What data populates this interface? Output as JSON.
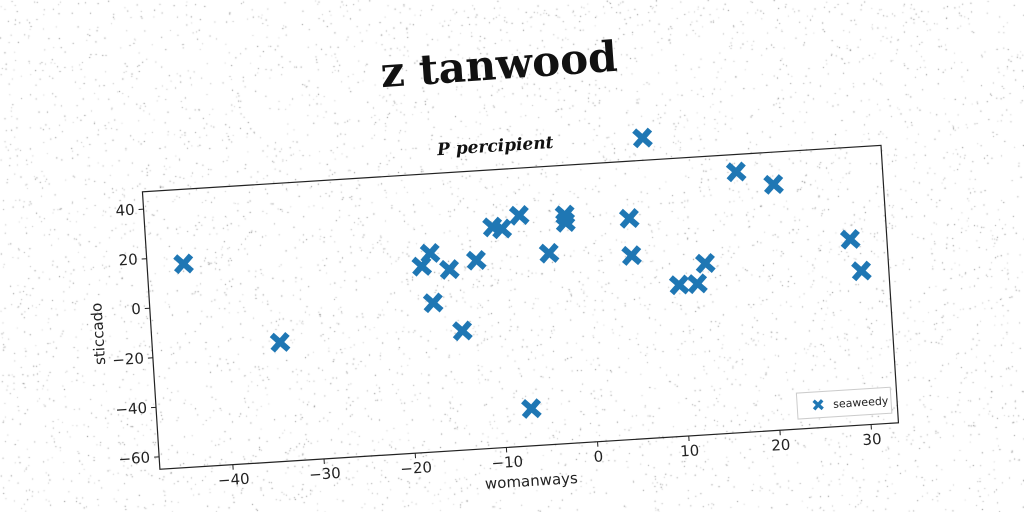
{
  "page_title": "z tanwood",
  "chart_data": {
    "type": "scatter",
    "title": "P percipient",
    "xlabel": "womanways",
    "ylabel": "sticcado",
    "xlim": [
      -48,
      33
    ],
    "ylim": [
      -65,
      47
    ],
    "xticks": [
      -40,
      -30,
      -20,
      -10,
      0,
      10,
      20,
      30
    ],
    "yticks": [
      -60,
      -40,
      -20,
      0,
      20,
      40
    ],
    "grid": false,
    "legend_position": "bottom-right",
    "marker": "X",
    "color": "#1f77b4",
    "series": [
      {
        "name": "seaweedy",
        "points": [
          [
            -44,
            17
          ],
          [
            -34,
            -17
          ],
          [
            -18,
            10
          ],
          [
            -17,
            15
          ],
          [
            -15,
            8
          ],
          [
            -17,
            -5
          ],
          [
            -14,
            -17
          ],
          [
            -12,
            11
          ],
          [
            -10,
            24
          ],
          [
            -9,
            23
          ],
          [
            -7,
            28
          ],
          [
            -4,
            12
          ],
          [
            -2,
            27
          ],
          [
            -2,
            24
          ],
          [
            5,
            24
          ],
          [
            5,
            9
          ],
          [
            7,
            56
          ],
          [
            10,
            -4
          ],
          [
            12,
            -4
          ],
          [
            13,
            4
          ],
          [
            17,
            40
          ],
          [
            21,
            34
          ],
          [
            29,
            10
          ],
          [
            30,
            -3
          ],
          [
            -7,
            -50
          ]
        ]
      }
    ]
  }
}
